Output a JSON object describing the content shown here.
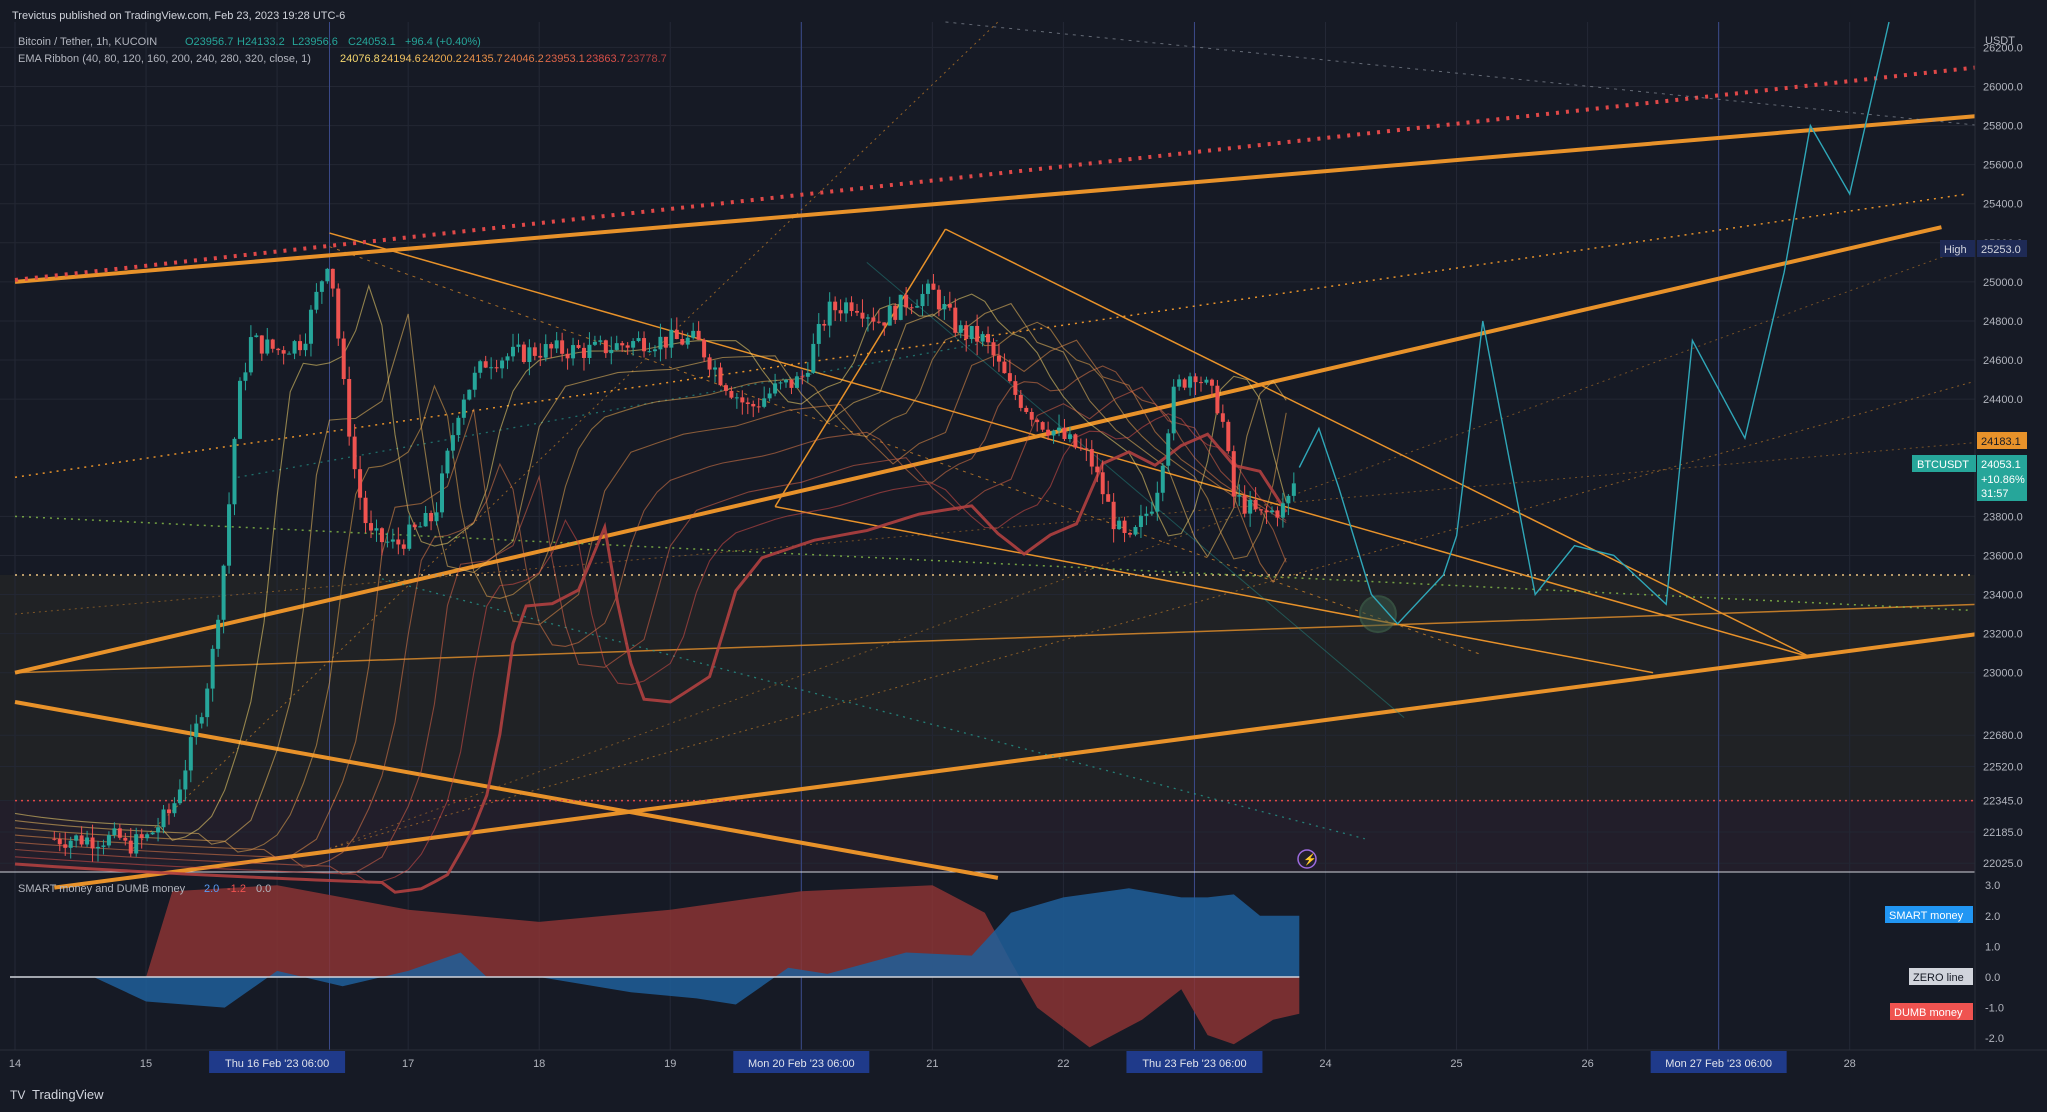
{
  "header": {
    "publisher": "Trevictus published on TradingView.com, Feb 23, 2023 19:28 UTC-6",
    "symbol_line": {
      "name": "Bitcoin / Tether, 1h, KUCOIN",
      "o_label": "O",
      "o": "23956.7",
      "h_label": "H",
      "h": "24133.2",
      "l_label": "L",
      "l": "23956.6",
      "c_label": "C",
      "c": "24053.1",
      "change": "+96.4 (+0.40%)"
    },
    "ema_line": {
      "name": "EMA Ribbon (40, 80, 120, 160, 200, 240, 280, 320, close, 1)",
      "values": [
        "24076.8",
        "24194.6",
        "24200.2",
        "24135.7",
        "24046.2",
        "23953.1",
        "23863.7",
        "23778.7"
      ],
      "colors": [
        "#f5d76e",
        "#f0c060",
        "#e8a84e",
        "#e89048",
        "#e07a48",
        "#dd6448",
        "#d84f48",
        "#b04040"
      ]
    }
  },
  "colors": {
    "background": "#161a25",
    "orange_line": "#e8922a",
    "red_dotted": "#e04848",
    "bull": "#26a69a",
    "bear": "#ef5350",
    "projection": "#2fa7b8",
    "smart_fill": "#1f5f9a",
    "dumb_fill": "#8a3434"
  },
  "price_axis": {
    "currency": "USDT",
    "ticks": [
      "26200.0",
      "26000.0",
      "25800.0",
      "25600.0",
      "25400.0",
      "25200.0",
      "25000.0",
      "24800.0",
      "24600.0",
      "24400.0",
      "23800.0",
      "23600.0",
      "23400.0",
      "23200.0",
      "23000.0",
      "22680.0",
      "22520.0",
      "22345.0",
      "22185.0",
      "22025.0"
    ],
    "high_label": "High",
    "high_value": "25253.0",
    "marker_value": "24183.1",
    "current_symbol": "BTCUSDT",
    "current_price": "24053.1",
    "current_change": "+10.86%",
    "countdown": "31:57"
  },
  "time_axis": {
    "ticks": [
      "14",
      "15",
      "Thu 16 Feb '23  06:00",
      "17",
      "18",
      "19",
      "Mon 20 Feb '23  06:00",
      "21",
      "22",
      "Thu 23 Feb '23  06:00",
      "24",
      "25",
      "26",
      "Mon 27 Feb '23  06:00",
      "28"
    ]
  },
  "indicator": {
    "title": "SMART money and DUMB money",
    "value_smart": "2.0",
    "value_dumb": "-1.2",
    "value_zero": "0.0",
    "labels": {
      "smart": "SMART money",
      "zero": "ZERO line",
      "dumb": "DUMB money"
    },
    "axis_ticks": [
      "3.0",
      "2.0",
      "1.0",
      "0.0",
      "-1.0",
      "-2.0"
    ]
  },
  "footer": {
    "brand": "TradingView"
  },
  "chart_data": {
    "type": "line",
    "title": "Bitcoin / Tether, 1h, KUCOIN",
    "price_range": [
      21950,
      26330
    ],
    "price_series_close_approx": [
      [
        14.8,
        22100
      ],
      [
        15.0,
        22150
      ],
      [
        15.2,
        22300
      ],
      [
        15.4,
        22750
      ],
      [
        15.5,
        23050
      ],
      [
        15.6,
        23600
      ],
      [
        15.7,
        24400
      ],
      [
        15.8,
        24700
      ],
      [
        16.0,
        24650
      ],
      [
        16.2,
        24700
      ],
      [
        16.4,
        25150
      ],
      [
        16.5,
        24500
      ],
      [
        16.6,
        24000
      ],
      [
        16.7,
        23700
      ],
      [
        16.9,
        23650
      ],
      [
        17.2,
        23800
      ],
      [
        17.4,
        24400
      ],
      [
        17.6,
        24600
      ],
      [
        18.0,
        24650
      ],
      [
        18.4,
        24650
      ],
      [
        18.8,
        24700
      ],
      [
        19.2,
        24700
      ],
      [
        19.4,
        24500
      ],
      [
        19.6,
        24350
      ],
      [
        19.8,
        24450
      ],
      [
        20.0,
        24500
      ],
      [
        20.2,
        24850
      ],
      [
        20.4,
        24900
      ],
      [
        20.6,
        24800
      ],
      [
        20.8,
        24900
      ],
      [
        21.0,
        24950
      ],
      [
        21.2,
        24750
      ],
      [
        21.4,
        24700
      ],
      [
        21.6,
        24450
      ],
      [
        21.8,
        24300
      ],
      [
        22.0,
        24200
      ],
      [
        22.2,
        24100
      ],
      [
        22.4,
        23750
      ],
      [
        22.5,
        23650
      ],
      [
        22.7,
        23900
      ],
      [
        22.85,
        24450
      ],
      [
        23.0,
        24550
      ],
      [
        23.2,
        24350
      ],
      [
        23.3,
        23900
      ],
      [
        23.5,
        23800
      ],
      [
        23.7,
        23850
      ],
      [
        23.8,
        24053
      ]
    ],
    "projection_path": [
      [
        23.8,
        24050
      ],
      [
        23.95,
        24250
      ],
      [
        24.1,
        23950
      ],
      [
        24.35,
        23400
      ],
      [
        24.55,
        23250
      ],
      [
        24.9,
        23500
      ],
      [
        25.0,
        23700
      ],
      [
        25.2,
        24800
      ],
      [
        25.6,
        23400
      ],
      [
        25.9,
        23650
      ],
      [
        26.2,
        23600
      ],
      [
        26.6,
        23350
      ],
      [
        26.8,
        24700
      ],
      [
        27.2,
        24200
      ],
      [
        27.5,
        25050
      ],
      [
        27.7,
        25800
      ],
      [
        28.0,
        25450
      ],
      [
        28.3,
        26330
      ]
    ],
    "smart_money": [
      [
        14.4,
        0
      ],
      [
        14.6,
        0
      ],
      [
        15.0,
        -0.8
      ],
      [
        15.6,
        -1.0
      ],
      [
        16.0,
        0.2
      ],
      [
        16.5,
        -0.3
      ],
      [
        17.0,
        0.2
      ],
      [
        17.4,
        0.8
      ],
      [
        17.6,
        0
      ],
      [
        18.0,
        0
      ],
      [
        18.7,
        -0.5
      ],
      [
        19.2,
        -0.7
      ],
      [
        19.5,
        -0.9
      ],
      [
        19.9,
        0.3
      ],
      [
        20.2,
        0.1
      ],
      [
        20.8,
        0.8
      ],
      [
        21.3,
        0.7
      ],
      [
        21.6,
        2.1
      ],
      [
        22.0,
        2.6
      ],
      [
        22.5,
        2.9
      ],
      [
        22.9,
        2.6
      ],
      [
        23.1,
        2.6
      ],
      [
        23.3,
        2.7
      ],
      [
        23.5,
        2.0
      ],
      [
        23.8,
        2.0
      ]
    ],
    "dumb_money": [
      [
        14.4,
        0
      ],
      [
        14.6,
        0
      ],
      [
        15.0,
        0
      ],
      [
        15.2,
        2.8
      ],
      [
        16.0,
        3.0
      ],
      [
        17.0,
        2.2
      ],
      [
        18.0,
        1.8
      ],
      [
        19.0,
        2.2
      ],
      [
        20.0,
        2.8
      ],
      [
        21.0,
        3.0
      ],
      [
        21.4,
        2.1
      ],
      [
        21.6,
        0.5
      ],
      [
        21.8,
        -1.0
      ],
      [
        22.2,
        -2.3
      ],
      [
        22.6,
        -1.4
      ],
      [
        22.9,
        -0.4
      ],
      [
        23.1,
        -1.9
      ],
      [
        23.3,
        -2.2
      ],
      [
        23.6,
        -1.4
      ],
      [
        23.8,
        -1.2
      ]
    ],
    "horizontal_levels": [
      23500,
      22345
    ]
  }
}
